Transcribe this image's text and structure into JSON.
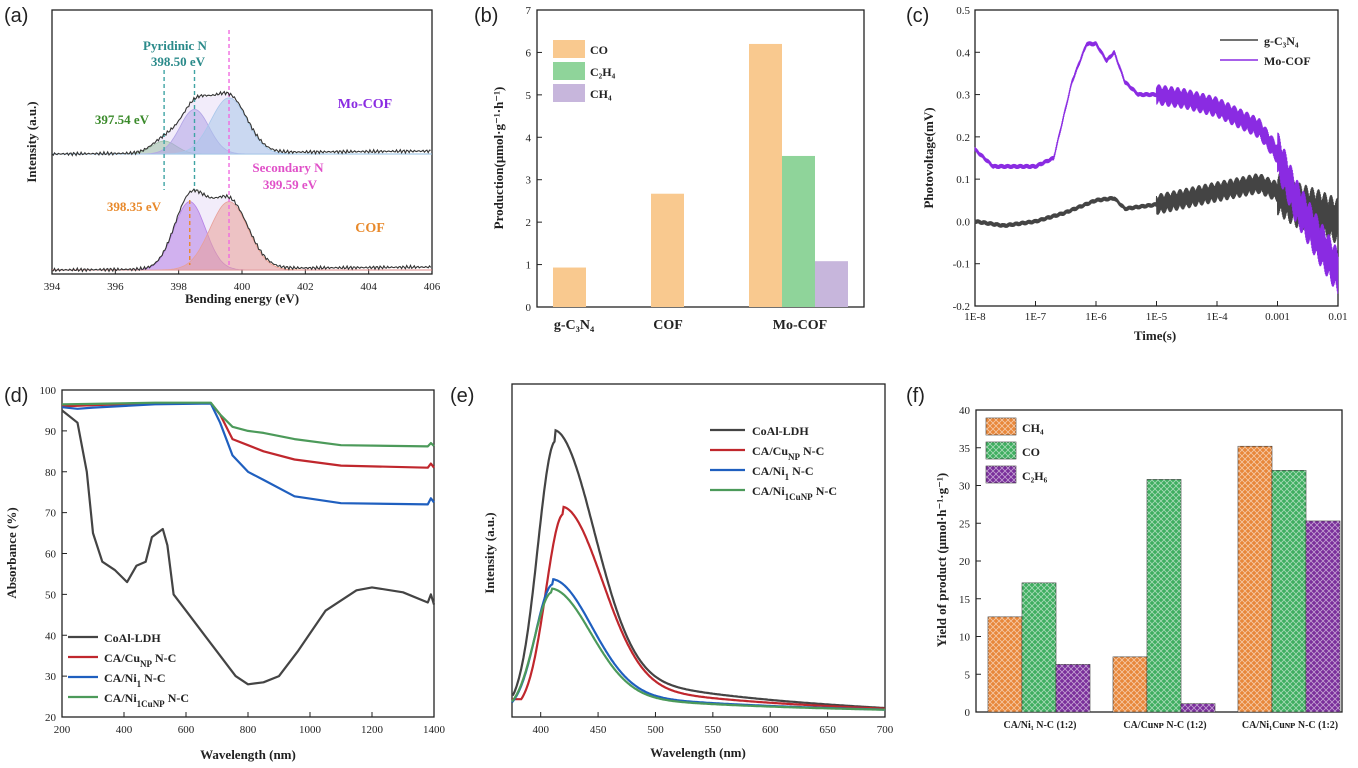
{
  "chart_data": [
    {
      "panel": "(a)",
      "type": "line",
      "xlabel": "Bending energy (eV)",
      "ylabel": "Intensity (a.u.)",
      "xlim": [
        394,
        406
      ],
      "xticks": [
        "394",
        "396",
        "398",
        "400",
        "402",
        "404",
        "406"
      ],
      "curve_labels": {
        "top": "Mo-COF",
        "bottom": "COF"
      },
      "curve_label_colors": {
        "top": "#8a2be2",
        "bottom": "#e8892b"
      },
      "annotations": [
        {
          "text": "Pyridinic N",
          "color": "#2a8a8a"
        },
        {
          "text": "398.50 eV",
          "color": "#2a8a8a"
        },
        {
          "text": "397.54 eV",
          "color": "#3a8a2a"
        },
        {
          "text": "Secondary N",
          "color": "#e050c8"
        },
        {
          "text": "399.59 eV",
          "color": "#e050c8"
        },
        {
          "text": "398.35 eV",
          "color": "#e8892b"
        }
      ],
      "top_peaks": [
        {
          "center": 397.54,
          "height": 0.18,
          "width": 0.55,
          "color": "#7fbf7f"
        },
        {
          "center": 398.5,
          "height": 0.62,
          "width": 0.65,
          "color": "#9b8fe0"
        },
        {
          "center": 399.59,
          "height": 0.78,
          "width": 0.8,
          "color": "#8fc6e8"
        }
      ],
      "bottom_peaks": [
        {
          "center": 398.35,
          "height": 0.95,
          "width": 0.7,
          "color": "#a35be0"
        },
        {
          "center": 399.59,
          "height": 0.95,
          "width": 0.85,
          "color": "#f08a6a"
        }
      ],
      "dashed_lines": [
        {
          "x": 397.54,
          "color": "#3fa4a4"
        },
        {
          "x": 398.5,
          "color": "#3fa4a4"
        },
        {
          "x": 398.35,
          "color": "#e8892b"
        },
        {
          "x": 399.59,
          "color": "#f06be0"
        }
      ]
    },
    {
      "panel": "(b)",
      "type": "bar",
      "ylabel": "Production(μmol·g⁻¹·h⁻¹)",
      "ylim": [
        0,
        7
      ],
      "yticks": [
        "0",
        "1",
        "2",
        "3",
        "4",
        "5",
        "6",
        "7"
      ],
      "categories": [
        "g-C₃N₄",
        "COF",
        "Mo-COF"
      ],
      "series": [
        {
          "name": "CO",
          "color": "#f9c98f",
          "values": [
            0.93,
            2.67,
            6.2
          ]
        },
        {
          "name": "C₂H₄",
          "color": "#8fd49a",
          "values": [
            0,
            0,
            3.56
          ]
        },
        {
          "name": "CH₄",
          "color": "#c7b6dc",
          "values": [
            0,
            0,
            1.08
          ]
        }
      ]
    },
    {
      "panel": "(c)",
      "type": "line",
      "xlabel": "Time(s)",
      "ylabel": "Photovoltage(mV)",
      "xscale": "log",
      "xlim": [
        1e-08,
        0.01
      ],
      "ylim": [
        -0.2,
        0.5
      ],
      "xticks": [
        "1E-8",
        "1E-7",
        "1E-6",
        "1E-5",
        "1E-4",
        "0.001",
        "0.01"
      ],
      "yticks": [
        "-0.2",
        "-0.1",
        "0.0",
        "0.1",
        "0.2",
        "0.3",
        "0.4",
        "0.5"
      ],
      "series": [
        {
          "name": "g-C₃N₄",
          "color": "#444444",
          "points": [
            [
              1e-08,
              0.0
            ],
            [
              3e-08,
              -0.01
            ],
            [
              1e-07,
              0.0
            ],
            [
              3e-07,
              0.02
            ],
            [
              1e-06,
              0.05
            ],
            [
              2e-06,
              0.055
            ],
            [
              3e-06,
              0.03
            ],
            [
              1e-05,
              0.04
            ],
            [
              0.0001,
              0.07
            ],
            [
              0.0005,
              0.09
            ],
            [
              0.001,
              0.07
            ],
            [
              0.002,
              0.04
            ],
            [
              0.005,
              0.02
            ],
            [
              0.01,
              0.0
            ]
          ]
        },
        {
          "name": "Mo-COF",
          "color": "#8a2be2",
          "points": [
            [
              1e-08,
              0.17
            ],
            [
              2e-08,
              0.13
            ],
            [
              1e-07,
              0.13
            ],
            [
              2e-07,
              0.15
            ],
            [
              4e-07,
              0.33
            ],
            [
              7e-07,
              0.42
            ],
            [
              1e-06,
              0.42
            ],
            [
              1.5e-06,
              0.38
            ],
            [
              2e-06,
              0.4
            ],
            [
              3e-06,
              0.33
            ],
            [
              5e-06,
              0.3
            ],
            [
              1e-05,
              0.3
            ],
            [
              3e-05,
              0.29
            ],
            [
              0.0001,
              0.27
            ],
            [
              0.0005,
              0.22
            ],
            [
              0.001,
              0.16
            ],
            [
              0.002,
              0.05
            ],
            [
              0.005,
              -0.05
            ],
            [
              0.01,
              -0.12
            ]
          ]
        }
      ]
    },
    {
      "panel": "(d)",
      "type": "line",
      "xlabel": "Wavelength (nm)",
      "ylabel": "Absorbance (%)",
      "xlim": [
        200,
        1400
      ],
      "ylim": [
        20,
        100
      ],
      "xticks": [
        "200",
        "400",
        "600",
        "800",
        "1000",
        "1200",
        "1400"
      ],
      "yticks": [
        "20",
        "30",
        "40",
        "50",
        "60",
        "70",
        "80",
        "90",
        "100"
      ],
      "series": [
        {
          "name": "CoAl-LDH",
          "color": "#444444",
          "points": [
            [
              200,
              95
            ],
            [
              250,
              92
            ],
            [
              280,
              80
            ],
            [
              300,
              65
            ],
            [
              330,
              58
            ],
            [
              370,
              56
            ],
            [
              410,
              53
            ],
            [
              440,
              57
            ],
            [
              470,
              58
            ],
            [
              490,
              64
            ],
            [
              525,
              66
            ],
            [
              540,
              62
            ],
            [
              560,
              50
            ],
            [
              600,
              46
            ],
            [
              640,
              42
            ],
            [
              700,
              36
            ],
            [
              760,
              30
            ],
            [
              800,
              28
            ],
            [
              850,
              28.5
            ],
            [
              900,
              30
            ],
            [
              960,
              36
            ],
            [
              1050,
              46
            ],
            [
              1150,
              51
            ],
            [
              1200,
              51.7
            ],
            [
              1300,
              50.5
            ],
            [
              1380,
              48
            ],
            [
              1390,
              50
            ],
            [
              1400,
              47.5
            ]
          ]
        },
        {
          "name": "CA/Cu_NP N-C",
          "color": "#c0272d",
          "points": [
            [
              200,
              96
            ],
            [
              300,
              96.3
            ],
            [
              500,
              96.7
            ],
            [
              680,
              96.8
            ],
            [
              710,
              94
            ],
            [
              750,
              88
            ],
            [
              800,
              86.5
            ],
            [
              850,
              85
            ],
            [
              950,
              83
            ],
            [
              1100,
              81.5
            ],
            [
              1380,
              81
            ],
            [
              1390,
              82
            ],
            [
              1400,
              81
            ]
          ]
        },
        {
          "name": "CA/Ni_1 N-C",
          "color": "#1f5fbf",
          "points": [
            [
              200,
              95.8
            ],
            [
              250,
              95.4
            ],
            [
              300,
              95.7
            ],
            [
              500,
              96.5
            ],
            [
              680,
              96.7
            ],
            [
              710,
              92
            ],
            [
              750,
              84
            ],
            [
              800,
              80
            ],
            [
              850,
              78
            ],
            [
              950,
              74
            ],
            [
              1100,
              72.3
            ],
            [
              1380,
              72
            ],
            [
              1390,
              73.5
            ],
            [
              1400,
              72.5
            ]
          ]
        },
        {
          "name": "CA/Ni_1Cu_NP N-C",
          "color": "#4c9a5a",
          "points": [
            [
              200,
              96.5
            ],
            [
              300,
              96.6
            ],
            [
              500,
              96.9
            ],
            [
              680,
              96.9
            ],
            [
              710,
              94
            ],
            [
              750,
              91
            ],
            [
              800,
              90
            ],
            [
              850,
              89.5
            ],
            [
              950,
              88
            ],
            [
              1100,
              86.5
            ],
            [
              1380,
              86.2
            ],
            [
              1390,
              87
            ],
            [
              1400,
              86.3
            ]
          ]
        }
      ]
    },
    {
      "panel": "(e)",
      "type": "line",
      "xlabel": "Wavelength (nm)",
      "ylabel": "Intensity (a.u.)",
      "xlim": [
        375,
        700
      ],
      "xticks": [
        "400",
        "450",
        "500",
        "550",
        "600",
        "650",
        "700"
      ],
      "series": [
        {
          "name": "CoAl-LDH",
          "color": "#444444",
          "peak": 413,
          "height": 1.0,
          "tail": 0.045
        },
        {
          "name": "CA/Cu_NP N-C",
          "color": "#c0272d",
          "peak": 420,
          "height": 0.73,
          "tail": 0.03
        },
        {
          "name": "CA/Ni_1 N-C",
          "color": "#1f5fbf",
          "peak": 411,
          "height": 0.47,
          "tail": 0.02
        },
        {
          "name": "CA/Ni_1Cu_NP N-C",
          "color": "#4c9a5a",
          "peak": 410,
          "height": 0.44,
          "tail": 0.015
        }
      ]
    },
    {
      "panel": "(f)",
      "type": "bar",
      "ylabel": "Yield of product (μmol·h⁻¹·g⁻¹)",
      "ylim": [
        0,
        40
      ],
      "yticks": [
        "0",
        "5",
        "10",
        "15",
        "20",
        "25",
        "30",
        "35",
        "40"
      ],
      "categories": [
        "CA/Ni₁ N-C (1:2)",
        "CA/Cuɴᴘ N-C (1:2)",
        "CA/Ni₁Cuɴᴘ N-C (1:2)"
      ],
      "series": [
        {
          "name": "CH₄",
          "color": "#e8873a",
          "values": [
            12.6,
            7.3,
            35.2
          ]
        },
        {
          "name": "CO",
          "color": "#3fae60",
          "values": [
            17.1,
            30.8,
            32.0
          ]
        },
        {
          "name": "C₂H₆",
          "color": "#7a2f9b",
          "values": [
            6.3,
            1.1,
            25.3
          ]
        }
      ]
    }
  ]
}
